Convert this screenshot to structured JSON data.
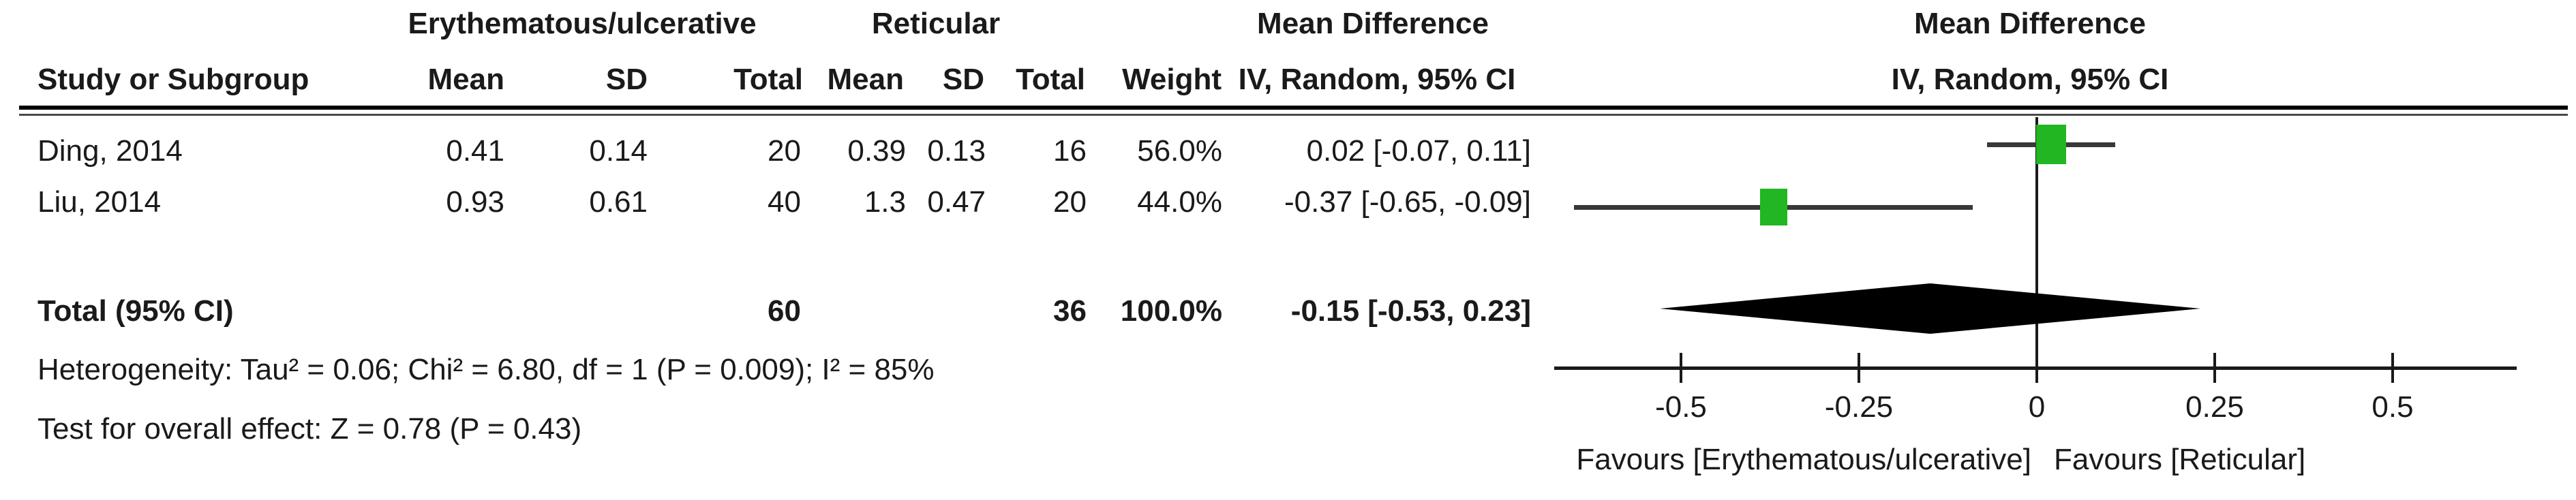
{
  "table": {
    "group1_header": "Erythematous/ulcerative",
    "group2_header": "Reticular",
    "md_text_header_line1": "Mean Difference",
    "md_text_header_line2": "IV, Random, 95% CI",
    "md_plot_header_line1": "Mean Difference",
    "md_plot_header_line2": "IV, Random, 95% CI",
    "col_headers": {
      "study": "Study or Subgroup",
      "mean1": "Mean",
      "sd1": "SD",
      "total1": "Total",
      "mean2": "Mean",
      "sd2": "SD",
      "total2": "Total",
      "weight": "Weight"
    },
    "rows": [
      {
        "study": "Ding, 2014",
        "mean1": "0.41",
        "sd1": "0.14",
        "total1": "20",
        "mean2": "0.39",
        "sd2": "0.13",
        "total2": "16",
        "weight": "56.0%",
        "ci": "0.02 [-0.07, 0.11]"
      },
      {
        "study": "Liu, 2014",
        "mean1": "0.93",
        "sd1": "0.61",
        "total1": "40",
        "mean2": "1.3",
        "sd2": "0.47",
        "total2": "20",
        "weight": "44.0%",
        "ci": "-0.37 [-0.65, -0.09]"
      }
    ],
    "total_row": {
      "label": "Total (95% CI)",
      "total1": "60",
      "total2": "36",
      "weight": "100.0%",
      "ci": "-0.15 [-0.53, 0.23]"
    },
    "heterogeneity": "Heterogeneity: Tau² = 0.06; Chi² = 6.80, df = 1 (P = 0.009); I² = 85%",
    "overall_effect": "Test for overall effect: Z = 0.78 (P = 0.43)"
  },
  "chart_data": {
    "type": "forest",
    "effect_measure": "Mean Difference",
    "model": "IV, Random, 95% CI",
    "studies": [
      {
        "name": "Ding, 2014",
        "md": 0.02,
        "ci_low": -0.07,
        "ci_high": 0.11,
        "weight": 56.0
      },
      {
        "name": "Liu, 2014",
        "md": -0.37,
        "ci_low": -0.65,
        "ci_high": -0.09,
        "weight": 44.0
      }
    ],
    "total": {
      "md": -0.15,
      "ci_low": -0.53,
      "ci_high": 0.23
    },
    "axis": {
      "ticks": [
        -0.5,
        -0.25,
        0,
        0.25,
        0.5
      ],
      "tick_labels": [
        "-0.5",
        "-0.25",
        "0",
        "0.25",
        "0.5"
      ],
      "min": -0.678,
      "max": 0.674,
      "grid": false
    },
    "favours_left": "Favours [Erythematous/ulcerative]",
    "favours_right": "Favours [Reticular]",
    "marker_color": "#22b622",
    "ci_color": "#383838",
    "diamond_color": "#000000"
  }
}
